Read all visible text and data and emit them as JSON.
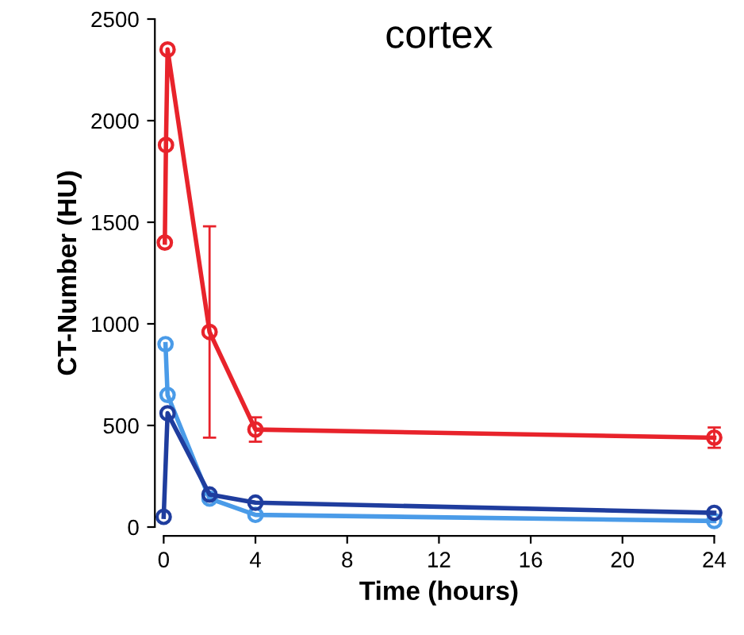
{
  "chart_data": {
    "type": "line",
    "title": "cortex",
    "xlabel": "Time (hours)",
    "ylabel": "CT-Number (HU)",
    "xlim": [
      0,
      24
    ],
    "xticks": [
      0,
      4,
      8,
      12,
      16,
      20,
      24
    ],
    "ylim": [
      0,
      2500
    ],
    "yticks": [
      0,
      500,
      1000,
      1500,
      2000,
      2500
    ],
    "grid": false,
    "legend": false,
    "marker": "circle",
    "line_style": "solid",
    "series": [
      {
        "color": "#e8232b",
        "x": [
          0.05,
          0.1,
          0.17,
          2,
          4,
          24
        ],
        "values": [
          1400,
          1880,
          2350,
          960,
          480,
          440
        ],
        "errors": [
          null,
          null,
          null,
          520,
          60,
          50
        ]
      },
      {
        "color": "#4a9be8",
        "x": [
          0.08,
          0.17,
          2,
          4,
          24
        ],
        "values": [
          900,
          650,
          140,
          60,
          30
        ]
      },
      {
        "color": "#1f3d9e",
        "x": [
          0,
          0.17,
          2,
          4,
          24
        ],
        "values": [
          50,
          560,
          160,
          120,
          70
        ]
      }
    ]
  }
}
